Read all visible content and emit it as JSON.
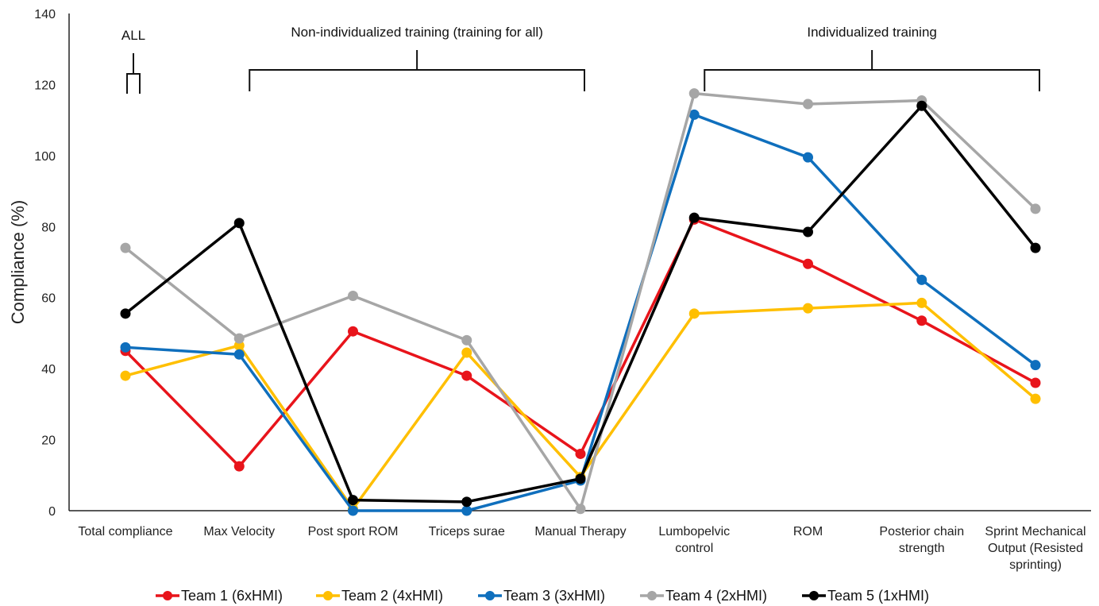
{
  "chart_data": {
    "type": "line",
    "ylabel": "Compliance (%)",
    "ylim": [
      0,
      140
    ],
    "yticks": [
      0,
      20,
      40,
      60,
      80,
      100,
      120,
      140
    ],
    "grid": false,
    "legend_position": "bottom",
    "categories": [
      [
        "Total compliance"
      ],
      [
        "Max Velocity"
      ],
      [
        "Post sport ROM"
      ],
      [
        "Triceps surae"
      ],
      [
        "Manual Therapy"
      ],
      [
        "Lumbopelvic",
        "control"
      ],
      [
        "ROM"
      ],
      [
        "Posterior chain",
        "strength"
      ],
      [
        "Sprint Mechanical",
        "Output (Resisted",
        "sprinting)"
      ]
    ],
    "groups": [
      {
        "label": "ALL",
        "from": 0,
        "to": 0
      },
      {
        "label": "Non-individualized training (training for all)",
        "from": 1,
        "to": 4
      },
      {
        "label": "Individualized training",
        "from": 5,
        "to": 8
      }
    ],
    "series": [
      {
        "name": "Team 1 (6xHMI)",
        "color": "#e8141b",
        "values": [
          45,
          12.5,
          50.5,
          38,
          16,
          82,
          69.5,
          53.5,
          36
        ]
      },
      {
        "name": "Team 2 (4xHMI)",
        "color": "#ffbf00",
        "values": [
          38,
          46.5,
          0.5,
          44.5,
          9.5,
          55.5,
          57,
          58.5,
          31.5
        ]
      },
      {
        "name": "Team 3 (3xHMI)",
        "color": "#0f6fbd",
        "values": [
          46,
          44,
          0,
          0,
          8.5,
          111.5,
          99.5,
          65,
          41
        ]
      },
      {
        "name": "Team 4 (2xHMI)",
        "color": "#a6a6a6",
        "values": [
          74,
          48.5,
          60.5,
          48,
          0.5,
          117.5,
          114.5,
          115.5,
          85
        ]
      },
      {
        "name": "Team 5 (1xHMI)",
        "color": "#000000",
        "values": [
          55.5,
          81,
          3,
          2.5,
          9,
          82.5,
          78.5,
          114,
          74
        ]
      }
    ]
  }
}
